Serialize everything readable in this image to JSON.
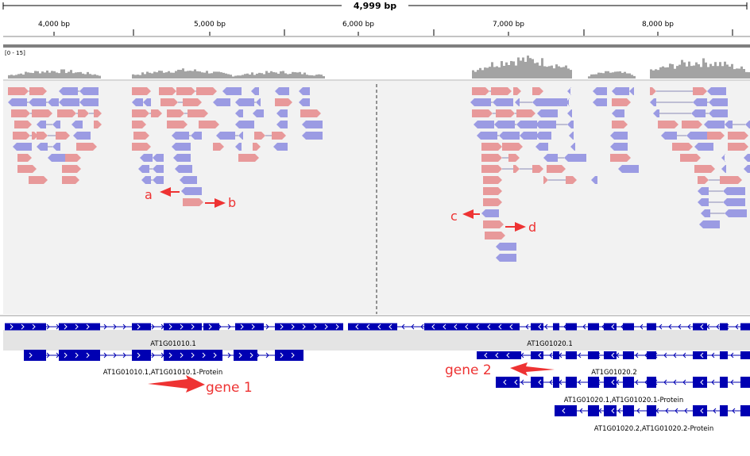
{
  "ruler": {
    "span_label": "4,999 bp",
    "ticks": [
      "4,000 bp",
      "5,000 bp",
      "6,000 bp",
      "7,000 bp",
      "8,000 bp"
    ]
  },
  "coverage": {
    "range_label": "[0 - 15]"
  },
  "annotations": {
    "a": "a",
    "b": "b",
    "c": "c",
    "d": "d",
    "gene1": "gene 1",
    "gene2": "gene 2"
  },
  "genes": {
    "g1_collapsed": "AT1G01010.1",
    "g2_collapsed": "AT1G01020.1",
    "g1_protein": "AT1G01010.1,AT1G01010.1-Protein",
    "g2_t2": "AT1G01020.2",
    "g2_t1_protein": "AT1G01020.1,AT1G01020.1-Protein",
    "g2_t2_protein": "AT1G01020.2,AT1G01020.2-Protein"
  },
  "colors": {
    "read_forward": "#e8999a",
    "read_reverse": "#9b9be3",
    "gene": "#0000b2",
    "coverage": "#a3a3a3",
    "annotation": "#ee3333"
  }
}
